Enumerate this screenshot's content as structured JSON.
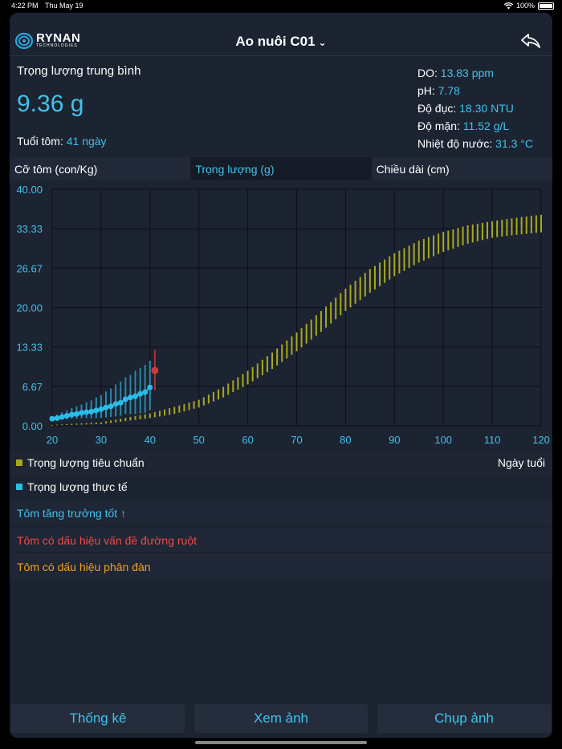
{
  "status": {
    "time": "4:22 PM",
    "date": "Thu May 19",
    "battery": "100%"
  },
  "header": {
    "brand": "RYNAN",
    "brand_sub": "TECHNOLOGIES",
    "title": "Ao nuôi C01"
  },
  "summary": {
    "avg_weight_label": "Trọng lượng trung bình",
    "avg_weight_value": "9.36 g",
    "age_label": "Tuổi tôm:",
    "age_value": "41 ngày",
    "metrics": [
      {
        "label": "DO:",
        "value": "13.83 ppm"
      },
      {
        "label": "pH:",
        "value": "7.78"
      },
      {
        "label": "Độ đục:",
        "value": "18.30 NTU"
      },
      {
        "label": "Độ mặn:",
        "value": "11.52 g/L"
      },
      {
        "label": "Nhiệt độ nước:",
        "value": "31.3 °C"
      }
    ]
  },
  "tabs": [
    {
      "label": "Cỡ tôm (con/Kg)",
      "active": false
    },
    {
      "label": "Trọng lượng (g)",
      "active": true
    },
    {
      "label": "Chiều dài (cm)",
      "active": false
    }
  ],
  "chart_data": {
    "type": "line",
    "xlim": [
      20,
      120
    ],
    "ylim": [
      0,
      40
    ],
    "x_ticks": [
      "20",
      "30",
      "40",
      "50",
      "60",
      "70",
      "80",
      "90",
      "100",
      "110",
      "120"
    ],
    "y_ticks": [
      "0.00",
      "6.67",
      "13.33",
      "20.00",
      "26.67",
      "33.33",
      "40.00"
    ],
    "xlabel": "Ngày tuổi",
    "grid": true,
    "colors": {
      "standard": "#a8a820",
      "actual": "#29bde8",
      "outlier": "#d03a3a"
    },
    "series": [
      {
        "name": "Trọng lượng tiêu chuẩn",
        "kind": "range",
        "x": [
          20,
          30,
          40,
          45,
          50,
          55,
          60,
          65,
          70,
          75,
          80,
          85,
          90,
          95,
          100,
          105,
          110,
          115,
          120
        ],
        "low": [
          0.05,
          0.3,
          1.3,
          2.0,
          3.1,
          4.8,
          7.0,
          9.6,
          12.6,
          15.9,
          19.4,
          22.5,
          25.3,
          27.6,
          29.4,
          30.8,
          31.8,
          32.3,
          32.7
        ],
        "high": [
          0.15,
          0.6,
          2.1,
          3.2,
          4.4,
          6.6,
          9.3,
          12.4,
          15.8,
          19.4,
          23.2,
          26.5,
          29.2,
          31.3,
          32.8,
          33.9,
          34.6,
          35.2,
          35.7
        ]
      },
      {
        "name": "Trọng lượng thực tế",
        "kind": "points_with_range",
        "x": [
          20,
          21,
          22,
          23,
          24,
          25,
          26,
          27,
          28,
          29,
          30,
          31,
          32,
          33,
          34,
          35,
          36,
          37,
          38,
          39,
          40
        ],
        "values": [
          1.2,
          1.3,
          1.5,
          1.7,
          1.9,
          2.0,
          2.2,
          2.3,
          2.4,
          2.6,
          2.8,
          3.1,
          3.3,
          3.7,
          3.9,
          4.5,
          4.8,
          5.0,
          5.4,
          5.7,
          6.5
        ],
        "low": [
          0.9,
          0.9,
          1.0,
          1.1,
          1.2,
          1.2,
          1.3,
          1.3,
          1.3,
          1.3,
          1.3,
          1.4,
          1.5,
          1.6,
          1.7,
          2.0,
          2.0,
          2.0,
          2.1,
          2.2,
          2.6
        ],
        "high": [
          1.6,
          1.9,
          2.3,
          2.6,
          3.0,
          3.3,
          3.6,
          4.0,
          4.3,
          4.8,
          5.2,
          5.8,
          6.3,
          7.0,
          7.5,
          8.2,
          8.6,
          9.3,
          9.8,
          10.3,
          11.0
        ]
      },
      {
        "name": "current",
        "kind": "outlier",
        "x": [
          41
        ],
        "values": [
          9.36
        ],
        "low": [
          6.0
        ],
        "high": [
          12.8
        ]
      }
    ]
  },
  "legend": {
    "standard": "Trọng lượng tiêu chuẩn",
    "actual": "Trọng lượng thực tế",
    "days": "Ngày tuổi"
  },
  "notes": {
    "good": "Tôm tăng trưởng tốt ↑",
    "gut": "Tôm có dấu hiệu vấn đề đường ruột",
    "uneven": "Tôm có dấu hiệu phân đàn"
  },
  "bottom": {
    "stats": "Thống kê",
    "view": "Xem ảnh",
    "capture": "Chụp ảnh"
  }
}
